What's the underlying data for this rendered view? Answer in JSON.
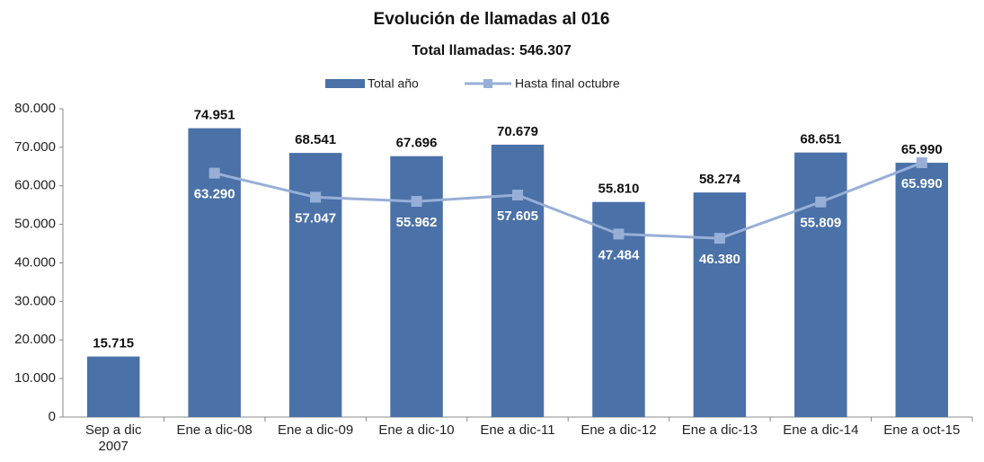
{
  "chart_data": {
    "type": "bar-line",
    "title": "Evolución de llamadas al 016",
    "subtitle": "Total llamadas: 546.307",
    "categories": [
      "Sep a dic\n2007",
      "Ene a dic-08",
      "Ene a dic-09",
      "Ene a dic-10",
      "Ene a dic-11",
      "Ene a dic-12",
      "Ene a dic-13",
      "Ene a dic-14",
      "Ene a oct-15"
    ],
    "series": [
      {
        "name": "Total año",
        "type": "bar",
        "color": "#4a71a8",
        "values": [
          15715,
          74951,
          68541,
          67696,
          70679,
          55810,
          58274,
          68651,
          65990
        ],
        "value_labels": [
          "15.715",
          "74.951",
          "68.541",
          "67.696",
          "70.679",
          "55.810",
          "58.274",
          "68.651",
          "65.990"
        ]
      },
      {
        "name": "Hasta final octubre",
        "type": "line",
        "color": "#97afd6",
        "values": [
          null,
          63290,
          57047,
          55962,
          57605,
          47484,
          46380,
          55809,
          65990
        ],
        "value_labels": [
          null,
          "63.290",
          "57.047",
          "55.962",
          "57.605",
          "47.484",
          "46.380",
          "55.809",
          "65.990"
        ]
      }
    ],
    "ylim": [
      0,
      80000
    ],
    "yticks": [
      {
        "value": 0,
        "label": "0"
      },
      {
        "value": 10000,
        "label": "10.000"
      },
      {
        "value": 20000,
        "label": "20.000"
      },
      {
        "value": 30000,
        "label": "30.000"
      },
      {
        "value": 40000,
        "label": "40.000"
      },
      {
        "value": 50000,
        "label": "50.000"
      },
      {
        "value": 60000,
        "label": "60.000"
      },
      {
        "value": 70000,
        "label": "70.000"
      },
      {
        "value": 80000,
        "label": "80.000"
      }
    ],
    "legend": "top"
  }
}
